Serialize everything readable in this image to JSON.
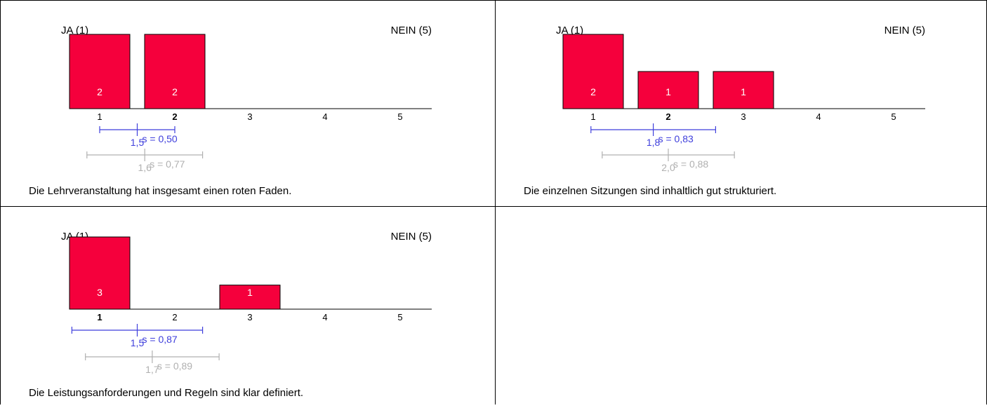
{
  "chart_data": [
    {
      "type": "bar",
      "left_label": "JA (1)",
      "right_label": "NEIN (5)",
      "categories": [
        "1",
        "2",
        "3",
        "4",
        "5"
      ],
      "values": [
        2,
        2,
        0,
        0,
        0
      ],
      "bold_category": "2",
      "ymax": 2,
      "question": "Die Lehrveranstaltung hat insgesamt einen roten Faden.",
      "stats": [
        {
          "mean": 1.5,
          "mean_label": "1,5",
          "sd": 0.5,
          "sd_label": "s = 0,50",
          "color": "#3f3fdc"
        },
        {
          "mean": 1.6,
          "mean_label": "1,6",
          "sd": 0.77,
          "sd_label": "s = 0,77",
          "color": "#b0b0b0"
        }
      ]
    },
    {
      "type": "bar",
      "left_label": "JA (1)",
      "right_label": "NEIN (5)",
      "categories": [
        "1",
        "2",
        "3",
        "4",
        "5"
      ],
      "values": [
        2,
        1,
        1,
        0,
        0
      ],
      "bold_category": "2",
      "ymax": 2,
      "question": "Die einzelnen Sitzungen sind inhaltlich gut strukturiert.",
      "stats": [
        {
          "mean": 1.8,
          "mean_label": "1,8",
          "sd": 0.83,
          "sd_label": "s = 0,83",
          "color": "#3f3fdc"
        },
        {
          "mean": 2.0,
          "mean_label": "2,0",
          "sd": 0.88,
          "sd_label": "s = 0,88",
          "color": "#b0b0b0"
        }
      ]
    },
    {
      "type": "bar",
      "left_label": "JA (1)",
      "right_label": "NEIN (5)",
      "categories": [
        "1",
        "2",
        "3",
        "4",
        "5"
      ],
      "values": [
        3,
        0,
        1,
        0,
        0
      ],
      "bold_category": "1",
      "ymax": 3,
      "question": "Die Leistungsanforderungen und Regeln sind klar definiert.",
      "stats": [
        {
          "mean": 1.5,
          "mean_label": "1,5",
          "sd": 0.87,
          "sd_label": "s = 0,87",
          "color": "#3f3fdc"
        },
        {
          "mean": 1.7,
          "mean_label": "1,7",
          "sd": 0.89,
          "sd_label": "s = 0,89",
          "color": "#b0b0b0"
        }
      ]
    }
  ],
  "colors": {
    "bar": "#f5003c",
    "border": "#000000"
  }
}
